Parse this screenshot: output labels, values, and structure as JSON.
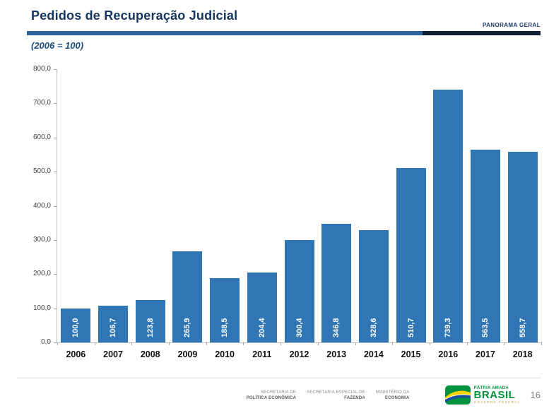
{
  "header": {
    "title": "Pedidos de Recuperação Judicial",
    "tag": "PANORAMA GERAL"
  },
  "subtitle": "(2006 = 100)",
  "chart_data": {
    "type": "bar",
    "title": "Pedidos de Recuperação Judicial",
    "subtitle": "(2006 = 100)",
    "categories": [
      "2006",
      "2007",
      "2008",
      "2009",
      "2010",
      "2011",
      "2012",
      "2013",
      "2014",
      "2015",
      "2016",
      "2017",
      "2018"
    ],
    "values": [
      100.0,
      106.7,
      123.8,
      265.9,
      188.5,
      204.4,
      300.4,
      346.8,
      328.6,
      510.7,
      739.3,
      563.5,
      558.7
    ],
    "value_labels": [
      "100,0",
      "106,7",
      "123,8",
      "265,9",
      "188,5",
      "204,4",
      "300,4",
      "346,8",
      "328,6",
      "510,7",
      "739,3",
      "563,5",
      "558,7"
    ],
    "xlabel": "",
    "ylabel": "",
    "ylim": [
      0,
      800
    ],
    "ytick_step": 100,
    "ytick_labels": [
      "0,0",
      "100,0",
      "200,0",
      "300,0",
      "400,0",
      "500,0",
      "600,0",
      "700,0",
      "800,0"
    ],
    "grid": false,
    "legend": "none",
    "bar_color": "#3076B4",
    "value_label_style": "inside-bottom-rotated-white-bold"
  },
  "footer": {
    "orgs": [
      {
        "line1": "SECRETARIA DE",
        "line2": "POLÍTICA ECONÔMICA"
      },
      {
        "line1": "SECRETARIA ESPECIAL DE",
        "line2": "FAZENDA"
      },
      {
        "line1": "MINISTÉRIO DA",
        "line2": "ECONOMIA"
      }
    ],
    "logo": {
      "top": "PÁTRIA AMADA",
      "main": "BRASIL",
      "sub": "GOVERNO FEDERAL"
    },
    "page_number": "16"
  },
  "colors": {
    "title": "#17365D",
    "subtitle": "#1F4E79",
    "divider_blue": "#2C6398",
    "divider_dark": "#101F33",
    "bar": "#3076B4",
    "bar_label": "#FFFFFF",
    "axis": "#BFBFBF",
    "logo_green": "#00923F",
    "logo_yellow": "#FFD400",
    "logo_blue": "#1B4F9C"
  }
}
